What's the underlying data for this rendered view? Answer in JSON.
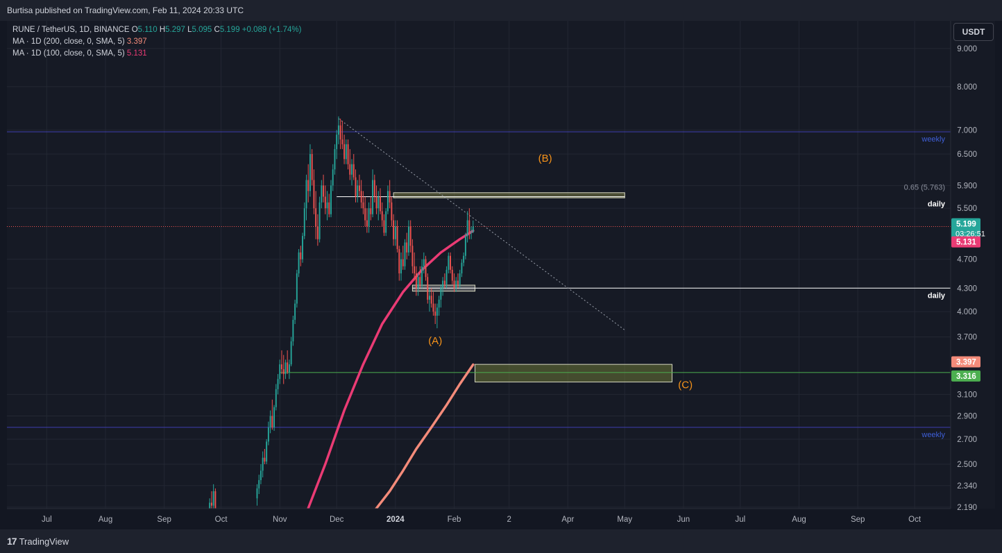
{
  "header": {
    "published": "Burtisa published on TradingView.com, Feb 11, 2024 20:33 UTC"
  },
  "legend": {
    "symbol": "RUNE / TetherUS, 1D, BINANCE",
    "open_label": "O",
    "open": "5.110",
    "high_label": "H",
    "high": "5.297",
    "low_label": "L",
    "low": "5.095",
    "close_label": "C",
    "close": "5.199",
    "change": "+0.089 (+1.74%)",
    "ma200_label": "MA · 1D (200, close, 0, SMA, 5)",
    "ma200_value": "3.397",
    "ma100_label": "MA · 1D (100, close, 0, SMA, 5)",
    "ma100_value": "5.131"
  },
  "currency_button": "USDT",
  "footer": {
    "brand": "TradingView",
    "mark": "17"
  },
  "chart_data": {
    "type": "candlestick",
    "symbol": "RUNE / TetherUS",
    "interval": "1D",
    "exchange": "BINANCE",
    "y_scale": "log",
    "ylim": [
      2.18,
      9.8
    ],
    "y_ticks": [
      "9.000",
      "8.000",
      "7.000",
      "6.500",
      "5.900",
      "5.500",
      "4.700",
      "4.300",
      "4.000",
      "3.700",
      "3.100",
      "2.900",
      "2.700",
      "2.500",
      "2.340",
      "2.190"
    ],
    "x_ticks": [
      "Jul",
      "Aug",
      "Sep",
      "Oct",
      "Nov",
      "Dec",
      "2024",
      "Feb",
      "2",
      "Apr",
      "May",
      "Jun",
      "Jul",
      "Aug",
      "Sep",
      "Oct"
    ],
    "x_ticks_bold": [
      "2024"
    ],
    "xlim": [
      "2023-06-10",
      "2024-10-20"
    ],
    "x_tick_dates": [
      "2023-07-01",
      "2023-08-01",
      "2023-09-01",
      "2023-10-01",
      "2023-11-01",
      "2023-12-01",
      "2024-01-01",
      "2024-02-01",
      "2024-03-01",
      "2024-04-01",
      "2024-05-01",
      "2024-06-01",
      "2024-07-01",
      "2024-08-01",
      "2024-09-01",
      "2024-10-01"
    ],
    "ohlc_sketch": [
      [
        "2023-09-25",
        2.15,
        2.25,
        2.13,
        2.22
      ],
      [
        "2023-09-26",
        2.22,
        2.3,
        2.18,
        2.2
      ],
      [
        "2023-09-27",
        2.2,
        2.35,
        2.18,
        2.3
      ],
      [
        "2023-09-28",
        2.3,
        2.32,
        2.15,
        2.18
      ],
      [
        "2023-10-20",
        2.25,
        2.35,
        2.2,
        2.32
      ],
      [
        "2023-10-21",
        2.32,
        2.42,
        2.28,
        2.38
      ],
      [
        "2023-10-22",
        2.38,
        2.5,
        2.35,
        2.45
      ],
      [
        "2023-10-23",
        2.45,
        2.6,
        2.4,
        2.55
      ],
      [
        "2023-10-24",
        2.55,
        2.62,
        2.5,
        2.52
      ],
      [
        "2023-10-25",
        2.52,
        2.7,
        2.5,
        2.68
      ],
      [
        "2023-10-26",
        2.68,
        2.85,
        2.65,
        2.8
      ],
      [
        "2023-10-27",
        2.8,
        2.95,
        2.75,
        2.9
      ],
      [
        "2023-10-28",
        2.9,
        3.05,
        2.78,
        2.8
      ],
      [
        "2023-10-29",
        2.8,
        3.0,
        2.77,
        2.98
      ],
      [
        "2023-10-30",
        2.98,
        3.2,
        2.95,
        3.15
      ],
      [
        "2023-10-31",
        3.15,
        3.3,
        3.1,
        3.25
      ],
      [
        "2023-11-01",
        3.25,
        3.45,
        3.2,
        3.4
      ],
      [
        "2023-11-02",
        3.4,
        3.55,
        3.3,
        3.35
      ],
      [
        "2023-11-03",
        3.35,
        3.5,
        3.2,
        3.3
      ],
      [
        "2023-11-04",
        3.3,
        3.45,
        3.25,
        3.42
      ],
      [
        "2023-11-05",
        3.42,
        3.55,
        3.3,
        3.32
      ],
      [
        "2023-11-06",
        3.32,
        3.45,
        3.25,
        3.4
      ],
      [
        "2023-11-07",
        3.4,
        3.7,
        3.38,
        3.65
      ],
      [
        "2023-11-08",
        3.65,
        3.95,
        3.6,
        3.9
      ],
      [
        "2023-11-09",
        3.9,
        4.15,
        3.85,
        4.1
      ],
      [
        "2023-11-10",
        4.1,
        4.55,
        4.05,
        4.5
      ],
      [
        "2023-11-11",
        4.5,
        4.85,
        4.45,
        4.8
      ],
      [
        "2023-11-12",
        4.8,
        4.9,
        4.6,
        4.7
      ],
      [
        "2023-11-13",
        4.7,
        5.1,
        4.65,
        5.05
      ],
      [
        "2023-11-14",
        5.05,
        5.6,
        5.0,
        5.5
      ],
      [
        "2023-11-15",
        5.5,
        6.1,
        5.3,
        6.0
      ],
      [
        "2023-11-16",
        6.0,
        6.3,
        5.6,
        5.8
      ],
      [
        "2023-11-17",
        5.8,
        6.7,
        5.7,
        6.5
      ],
      [
        "2023-11-18",
        6.5,
        6.6,
        5.9,
        6.0
      ],
      [
        "2023-11-19",
        6.0,
        6.2,
        5.4,
        5.5
      ],
      [
        "2023-11-20",
        5.5,
        5.8,
        5.0,
        5.2
      ],
      [
        "2023-11-21",
        5.2,
        5.4,
        4.9,
        5.0
      ],
      [
        "2023-11-22",
        5.0,
        5.7,
        4.95,
        5.6
      ],
      [
        "2023-11-23",
        5.6,
        6.0,
        5.5,
        5.9
      ],
      [
        "2023-11-24",
        5.9,
        6.1,
        5.6,
        5.7
      ],
      [
        "2023-11-25",
        5.7,
        5.9,
        5.4,
        5.5
      ],
      [
        "2023-11-26",
        5.5,
        5.8,
        5.3,
        5.6
      ],
      [
        "2023-11-27",
        5.6,
        5.75,
        5.35,
        5.4
      ],
      [
        "2023-11-28",
        5.4,
        6.0,
        5.35,
        5.9
      ],
      [
        "2023-11-29",
        5.9,
        6.3,
        5.8,
        6.2
      ],
      [
        "2023-11-30",
        6.2,
        6.7,
        6.1,
        6.6
      ],
      [
        "2023-12-01",
        6.6,
        7.0,
        6.4,
        6.9
      ],
      [
        "2023-12-02",
        6.9,
        7.3,
        6.7,
        7.1
      ],
      [
        "2023-12-03",
        7.1,
        7.25,
        6.6,
        6.8
      ],
      [
        "2023-12-04",
        6.8,
        7.2,
        6.6,
        6.7
      ],
      [
        "2023-12-05",
        6.7,
        6.9,
        6.3,
        6.4
      ],
      [
        "2023-12-06",
        6.4,
        6.8,
        6.3,
        6.7
      ],
      [
        "2023-12-07",
        6.7,
        6.8,
        6.2,
        6.3
      ],
      [
        "2023-12-08",
        6.3,
        6.6,
        6.0,
        6.1
      ],
      [
        "2023-12-09",
        6.1,
        6.4,
        5.9,
        6.3
      ],
      [
        "2023-12-10",
        6.3,
        6.5,
        6.0,
        6.05
      ],
      [
        "2023-12-11",
        6.05,
        6.2,
        5.6,
        5.7
      ],
      [
        "2023-12-12",
        5.7,
        6.0,
        5.6,
        5.9
      ],
      [
        "2023-12-13",
        5.9,
        6.1,
        5.7,
        5.8
      ],
      [
        "2023-12-14",
        5.8,
        6.0,
        5.5,
        5.6
      ],
      [
        "2023-12-15",
        5.6,
        5.8,
        5.4,
        5.5
      ],
      [
        "2023-12-16",
        5.5,
        5.7,
        5.2,
        5.3
      ],
      [
        "2023-12-17",
        5.3,
        5.5,
        5.1,
        5.2
      ],
      [
        "2023-12-18",
        5.2,
        5.6,
        5.1,
        5.5
      ],
      [
        "2023-12-19",
        5.5,
        5.7,
        5.3,
        5.4
      ],
      [
        "2023-12-20",
        5.4,
        6.2,
        5.35,
        6.0
      ],
      [
        "2023-12-21",
        6.0,
        6.1,
        5.6,
        5.7
      ],
      [
        "2023-12-22",
        5.7,
        5.9,
        5.4,
        5.5
      ],
      [
        "2023-12-23",
        5.5,
        5.8,
        5.3,
        5.7
      ],
      [
        "2023-12-24",
        5.7,
        5.85,
        5.4,
        5.45
      ],
      [
        "2023-12-25",
        5.45,
        5.6,
        5.2,
        5.3
      ],
      [
        "2023-12-26",
        5.3,
        5.4,
        5.05,
        5.1
      ],
      [
        "2023-12-27",
        5.1,
        5.5,
        5.05,
        5.45
      ],
      [
        "2023-12-28",
        5.45,
        5.9,
        5.4,
        5.8
      ],
      [
        "2023-12-29",
        5.8,
        6.0,
        5.5,
        5.6
      ],
      [
        "2023-12-30",
        5.6,
        5.7,
        5.2,
        5.3
      ],
      [
        "2023-12-31",
        5.3,
        5.4,
        4.9,
        5.0
      ],
      [
        "2024-01-01",
        5.0,
        5.3,
        4.9,
        5.2
      ],
      [
        "2024-01-02",
        5.2,
        5.3,
        4.8,
        4.85
      ],
      [
        "2024-01-03",
        4.85,
        4.9,
        4.4,
        4.5
      ],
      [
        "2024-01-04",
        4.5,
        4.8,
        4.4,
        4.7
      ],
      [
        "2024-01-05",
        4.7,
        4.9,
        4.55,
        4.6
      ],
      [
        "2024-01-06",
        4.6,
        5.0,
        4.55,
        4.95
      ],
      [
        "2024-01-07",
        4.95,
        5.1,
        4.7,
        4.8
      ],
      [
        "2024-01-08",
        4.8,
        5.3,
        4.75,
        5.2
      ],
      [
        "2024-01-09",
        5.2,
        5.3,
        4.8,
        4.9
      ],
      [
        "2024-01-10",
        4.9,
        5.0,
        4.5,
        4.6
      ],
      [
        "2024-01-11",
        4.6,
        4.8,
        4.4,
        4.5
      ],
      [
        "2024-01-12",
        4.5,
        4.6,
        4.2,
        4.3
      ],
      [
        "2024-01-13",
        4.3,
        4.5,
        4.2,
        4.45
      ],
      [
        "2024-01-14",
        4.45,
        4.6,
        4.3,
        4.35
      ],
      [
        "2024-01-15",
        4.35,
        4.7,
        4.3,
        4.6
      ],
      [
        "2024-01-16",
        4.6,
        4.8,
        4.5,
        4.7
      ],
      [
        "2024-01-17",
        4.7,
        4.75,
        4.4,
        4.45
      ],
      [
        "2024-01-18",
        4.45,
        4.5,
        4.1,
        4.15
      ],
      [
        "2024-01-19",
        4.15,
        4.3,
        4.0,
        4.2
      ],
      [
        "2024-01-20",
        4.2,
        4.3,
        4.05,
        4.1
      ],
      [
        "2024-01-21",
        4.1,
        4.25,
        3.95,
        4.0
      ],
      [
        "2024-01-22",
        4.0,
        4.1,
        3.85,
        3.95
      ],
      [
        "2024-01-23",
        3.95,
        4.1,
        3.8,
        4.05
      ],
      [
        "2024-01-24",
        4.05,
        4.2,
        3.95,
        4.15
      ],
      [
        "2024-01-25",
        4.15,
        4.35,
        4.05,
        4.3
      ],
      [
        "2024-01-26",
        4.3,
        4.45,
        4.2,
        4.4
      ],
      [
        "2024-01-27",
        4.4,
        4.5,
        4.3,
        4.35
      ],
      [
        "2024-01-28",
        4.35,
        4.6,
        4.3,
        4.55
      ],
      [
        "2024-01-29",
        4.55,
        4.8,
        4.5,
        4.75
      ],
      [
        "2024-01-30",
        4.75,
        4.8,
        4.5,
        4.55
      ],
      [
        "2024-01-31",
        4.55,
        4.6,
        4.35,
        4.4
      ],
      [
        "2024-02-01",
        4.4,
        4.5,
        4.25,
        4.3
      ],
      [
        "2024-02-02",
        4.3,
        4.45,
        4.25,
        4.4
      ],
      [
        "2024-02-03",
        4.4,
        4.5,
        4.3,
        4.35
      ],
      [
        "2024-02-04",
        4.35,
        4.55,
        4.3,
        4.5
      ],
      [
        "2024-02-05",
        4.5,
        4.7,
        4.45,
        4.65
      ],
      [
        "2024-02-06",
        4.65,
        4.8,
        4.6,
        4.75
      ],
      [
        "2024-02-07",
        4.75,
        5.1,
        4.7,
        5.05
      ],
      [
        "2024-02-08",
        5.05,
        5.45,
        4.95,
        5.3
      ],
      [
        "2024-02-09",
        5.3,
        5.5,
        5.0,
        5.11
      ],
      [
        "2024-02-10",
        5.11,
        5.2,
        5.0,
        5.11
      ],
      [
        "2024-02-11",
        5.11,
        5.297,
        5.095,
        5.199
      ]
    ],
    "ma200": {
      "name": "MA · 1D (200, close, 0, SMA, 5)",
      "color": "#f48b7a",
      "points": [
        [
          "2023-12-20",
          2.15
        ],
        [
          "2023-12-29",
          2.3
        ],
        [
          "2024-01-05",
          2.45
        ],
        [
          "2024-01-12",
          2.62
        ],
        [
          "2024-01-20",
          2.8
        ],
        [
          "2024-01-28",
          3.0
        ],
        [
          "2024-02-04",
          3.2
        ],
        [
          "2024-02-11",
          3.397
        ]
      ]
    },
    "ma100": {
      "name": "MA · 1D (100, close, 0, SMA, 5)",
      "color": "#ea3b74",
      "points": [
        [
          "2023-11-15",
          2.15
        ],
        [
          "2023-11-25",
          2.5
        ],
        [
          "2023-12-05",
          2.95
        ],
        [
          "2023-12-15",
          3.4
        ],
        [
          "2023-12-25",
          3.85
        ],
        [
          "2024-01-05",
          4.25
        ],
        [
          "2024-01-15",
          4.55
        ],
        [
          "2024-01-25",
          4.8
        ],
        [
          "2024-02-04",
          5.0
        ],
        [
          "2024-02-11",
          5.131
        ]
      ]
    },
    "horizontal_lines": [
      {
        "price": 6.96,
        "color": "#3f3fb0",
        "label": "weekly"
      },
      {
        "price": 2.8,
        "color": "#3f3fb0",
        "label": "weekly"
      },
      {
        "price": 5.7,
        "color": "#ffffff",
        "label": "daily",
        "from": "2023-12-01",
        "to": "2024-05-01"
      },
      {
        "price": 4.3,
        "color": "#ffffff",
        "label": "daily",
        "from": "2024-01-10"
      },
      {
        "price": 3.316,
        "color": "#4caf50",
        "from": "2023-11-01"
      }
    ],
    "current_price_line": 5.199,
    "fib_label": "0.65 (5.763)",
    "trendline": [
      [
        "2023-12-02",
        7.25
      ],
      [
        "2024-05-01",
        3.78
      ]
    ],
    "zones": [
      {
        "from": "2023-12-31",
        "to": "2024-05-01",
        "low": 5.68,
        "high": 5.77,
        "color": "#8b8b4a"
      },
      {
        "from": "2024-01-10",
        "to": "2024-02-12",
        "low": 4.26,
        "high": 4.34,
        "color": "#9a9a9a"
      },
      {
        "from": "2024-02-12",
        "to": "2024-05-26",
        "low": 3.22,
        "high": 3.4,
        "color": "#7c8a3a"
      }
    ],
    "annotations": [
      {
        "text": "(A)",
        "date": "2024-01-22",
        "price": 3.62
      },
      {
        "text": "(B)",
        "date": "2024-03-20",
        "price": 6.35
      },
      {
        "text": "(C)",
        "date": "2024-06-02",
        "price": 3.16
      }
    ],
    "price_badges": [
      {
        "value": "5.199",
        "sub": "03:26:51",
        "bg": "#26a69a"
      },
      {
        "value": "5.131",
        "bg": "#ea3b74"
      },
      {
        "value": "3.397",
        "bg": "#f48b7a"
      },
      {
        "value": "3.316",
        "bg": "#4caf50"
      }
    ],
    "up_color": "#26a69a",
    "down_color": "#ef5350"
  }
}
